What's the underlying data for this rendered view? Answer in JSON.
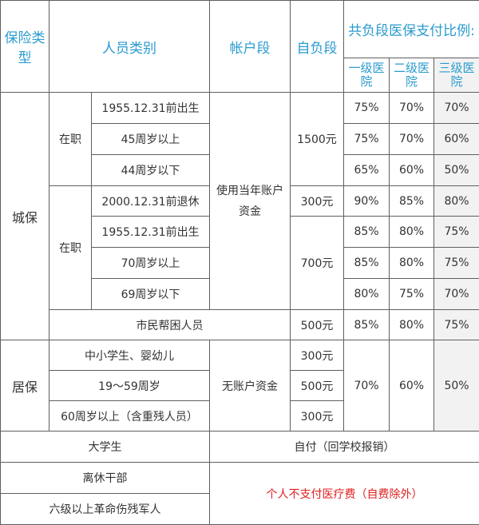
{
  "headers": {
    "type": "保险类型",
    "category": "人员类别",
    "account": "帐户段",
    "self_pay": "自负段",
    "co_pay": "共负段医保支付比例:",
    "level1": "一级医院",
    "level2": "二级医院",
    "level3": "三级医院"
  },
  "urban": {
    "label": "城保",
    "account_text": "使用当年账户资金",
    "on_job_a": {
      "label": "在职",
      "self_pay": "1500元",
      "rows": [
        {
          "category": "1955.12.31前出生",
          "r1": "75%",
          "r2": "70%",
          "r3": "70%"
        },
        {
          "category": "45周岁以上",
          "r1": "75%",
          "r2": "70%",
          "r3": "60%"
        },
        {
          "category": "44周岁以下",
          "r1": "65%",
          "r2": "60%",
          "r3": "50%"
        }
      ]
    },
    "retired": {
      "category": "2000.12.31前退休",
      "self_pay": "300元",
      "r1": "90%",
      "r2": "85%",
      "r3": "80%"
    },
    "on_job_b": {
      "label": "在职",
      "self_pay": "700元",
      "rows": [
        {
          "category": "1955.12.31前出生",
          "r1": "85%",
          "r2": "80%",
          "r3": "75%"
        },
        {
          "category": "70周岁以上",
          "r1": "85%",
          "r2": "80%",
          "r3": "75%"
        },
        {
          "category": "69周岁以下",
          "r1": "80%",
          "r2": "75%",
          "r3": "70%"
        }
      ]
    },
    "poor": {
      "category": "市民帮困人员",
      "self_pay": "500元",
      "r1": "85%",
      "r2": "80%",
      "r3": "75%"
    }
  },
  "resident": {
    "label": "居保",
    "account_text": "无账户资金",
    "rows": [
      {
        "category": "中小学生、婴幼儿",
        "self_pay": "300元"
      },
      {
        "category": "19～59周岁",
        "self_pay": "500元"
      },
      {
        "category": "60周岁以上（含重残人员）",
        "self_pay": "300元"
      }
    ],
    "r1": "70%",
    "r2": "60%",
    "r3": "50%"
  },
  "college": {
    "category": "大学生",
    "payment": "自付（回学校报销）"
  },
  "retired_cadre": {
    "category": "离休干部"
  },
  "disabled_veteran": {
    "category": "六级以上革命伤残军人"
  },
  "exempt_note": "个人不支付医疗费（自费除外）"
}
